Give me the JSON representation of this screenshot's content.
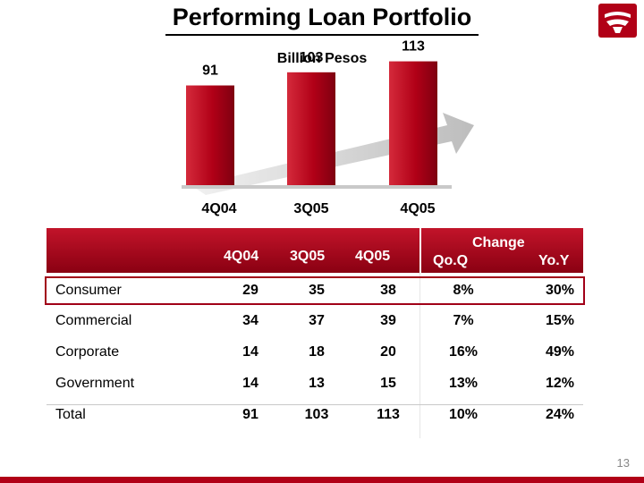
{
  "header": {
    "title": "Performing Loan Portfolio",
    "logo_icon": "banorte-logo-icon",
    "accent_color": "#b10017"
  },
  "chart_data": {
    "type": "bar",
    "title": "Billion Pesos",
    "categories": [
      "4Q04",
      "3Q05",
      "4Q05"
    ],
    "values": [
      91,
      103,
      113
    ],
    "data_labels": [
      "91",
      "103",
      "113"
    ],
    "bar_color": "#b10017",
    "trend_arrow": true,
    "ylim": [
      0,
      120
    ]
  },
  "table": {
    "group_header": "Change",
    "columns": [
      "",
      "4Q04",
      "3Q05",
      "4Q05",
      "Qo.Q",
      "Yo.Y"
    ],
    "rows": [
      {
        "label": "Consumer",
        "q404": "29",
        "q305": "35",
        "q405": "38",
        "qoq": "8%",
        "yoy": "30%",
        "highlight": true
      },
      {
        "label": "Commercial",
        "q404": "34",
        "q305": "37",
        "q405": "39",
        "qoq": "7%",
        "yoy": "15%",
        "highlight": false
      },
      {
        "label": "Corporate",
        "q404": "14",
        "q305": "18",
        "q405": "20",
        "qoq": "16%",
        "yoy": "49%",
        "highlight": false
      },
      {
        "label": "Government",
        "q404": "14",
        "q305": "13",
        "q405": "15",
        "qoq": "13%",
        "yoy": "12%",
        "highlight": false
      },
      {
        "label": "Total",
        "q404": "91",
        "q305": "103",
        "q405": "113",
        "qoq": "10%",
        "yoy": "24%",
        "highlight": false
      }
    ]
  },
  "footer": {
    "page_number": "13"
  }
}
